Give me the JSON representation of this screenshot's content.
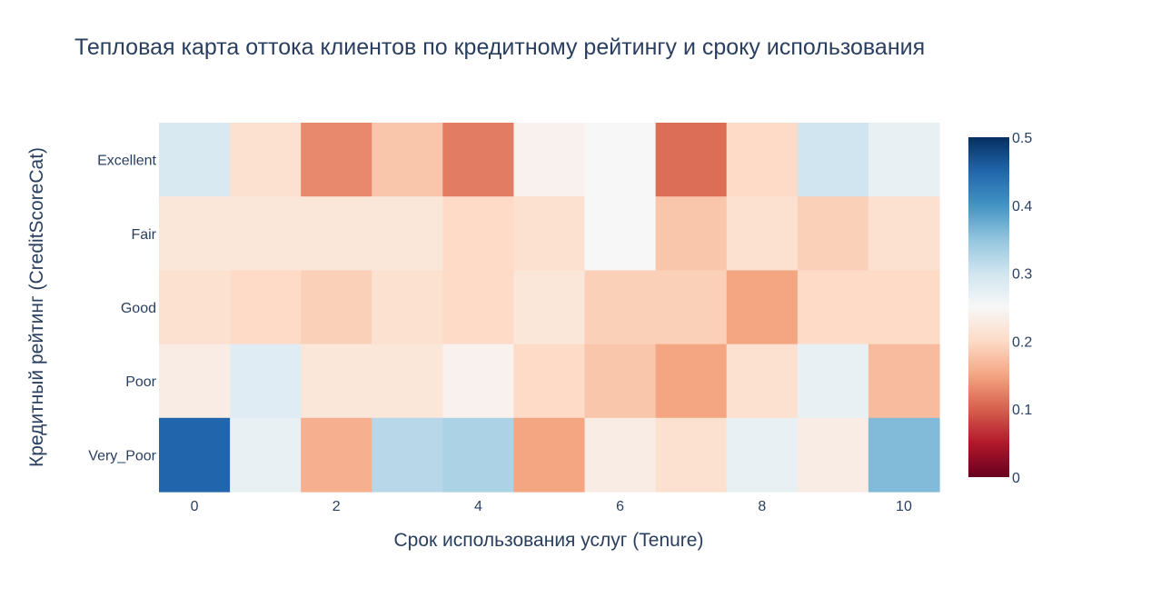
{
  "chart_data": {
    "type": "heatmap",
    "title": "Тепловая карта оттока клиентов по кредитному рейтингу и сроку использования",
    "xlabel": "Срок использования услуг (Tenure)",
    "ylabel": "Кредитный рейтинг (CreditScoreCat)",
    "x": [
      0,
      1,
      2,
      3,
      4,
      5,
      6,
      7,
      8,
      9,
      10
    ],
    "x_ticks": [
      "0",
      "2",
      "4",
      "6",
      "8",
      "10"
    ],
    "y": [
      "Excellent",
      "Fair",
      "Good",
      "Poor",
      "Very_Poor"
    ],
    "z": [
      [
        0.29,
        0.21,
        0.13,
        0.18,
        0.12,
        0.24,
        0.25,
        0.11,
        0.2,
        0.3,
        0.27
      ],
      [
        0.22,
        0.22,
        0.22,
        0.22,
        0.2,
        0.21,
        0.25,
        0.18,
        0.21,
        0.19,
        0.21
      ],
      [
        0.21,
        0.2,
        0.19,
        0.21,
        0.2,
        0.22,
        0.19,
        0.19,
        0.15,
        0.2,
        0.2
      ],
      [
        0.23,
        0.28,
        0.22,
        0.22,
        0.24,
        0.2,
        0.18,
        0.15,
        0.21,
        0.27,
        0.17
      ],
      [
        0.45,
        0.27,
        0.16,
        0.32,
        0.33,
        0.15,
        0.23,
        0.21,
        0.27,
        0.23,
        0.36
      ]
    ],
    "zlim": [
      0,
      0.5
    ],
    "colorbar_ticks": [
      "0",
      "0.1",
      "0.2",
      "0.3",
      "0.4",
      "0.5"
    ],
    "colorscale": "RdBu",
    "colorscale_stops": [
      "#67001f",
      "#b2182b",
      "#d6604d",
      "#f4a582",
      "#fddbc7",
      "#f7f7f7",
      "#d1e5f0",
      "#92c5de",
      "#4393c3",
      "#2166ac",
      "#053061"
    ],
    "grid": false,
    "legend": "colorbar-right"
  },
  "colors": {
    "text": "#2a3f5f",
    "background": "#ffffff"
  }
}
